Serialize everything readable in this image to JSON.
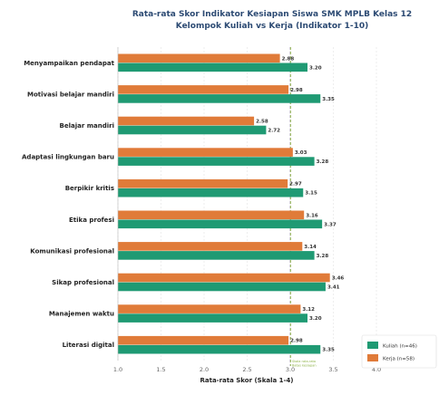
{
  "chart_data": {
    "type": "bar",
    "orientation": "horizontal",
    "title": "Rata-rata Skor Indikator Kesiapan Siswa SMK MPLB Kelas 12",
    "subtitle": "Kelompok Kuliah vs Kerja (Indikator 1-10)",
    "xlabel": "Rata-rata Skor (Skala 1-4)",
    "ylabel": "",
    "xlim": [
      1.0,
      4.0
    ],
    "xticks": [
      "1.0",
      "1.5",
      "2.0",
      "2.5",
      "3.0",
      "3.5",
      "4.0"
    ],
    "grid": true,
    "legend_position": "bottom-right",
    "categories": [
      "Menyampaikan pendapat",
      "Motivasi belajar mandiri",
      "Belajar mandiri",
      "Adaptasi lingkungan baru",
      "Berpikir kritis",
      "Etika profesi",
      "Komunikasi profesional",
      "Sikap profesional",
      "Manajemen waktu",
      "Literasi digital"
    ],
    "series": [
      {
        "name": "Kerja (n=58)",
        "color": "#e07b39",
        "values": [
          2.88,
          2.98,
          2.58,
          3.03,
          2.97,
          3.16,
          3.14,
          3.46,
          3.12,
          2.98
        ],
        "labels": [
          "2.88",
          "2.98",
          "2.58",
          "3.03",
          "2.97",
          "3.16",
          "3.14",
          "3.46",
          "3.12",
          "2.98"
        ]
      },
      {
        "name": "Kuliah (n=46)",
        "color": "#1f9a73",
        "values": [
          3.2,
          3.35,
          2.72,
          3.28,
          3.15,
          3.37,
          3.28,
          3.41,
          3.2,
          3.35
        ],
        "labels": [
          "3.20",
          "3.35",
          "2.72",
          "3.28",
          "3.15",
          "3.37",
          "3.28",
          "3.41",
          "3.20",
          "3.35"
        ]
      }
    ],
    "legend_order": [
      1,
      0
    ],
    "reference_lines": [
      {
        "value": 3.0,
        "label": "Skala rata-rata",
        "color": "#c9c9c9"
      },
      {
        "value": 3.0,
        "label": "Batas kesiapan",
        "color": "#8fb34a"
      }
    ]
  }
}
